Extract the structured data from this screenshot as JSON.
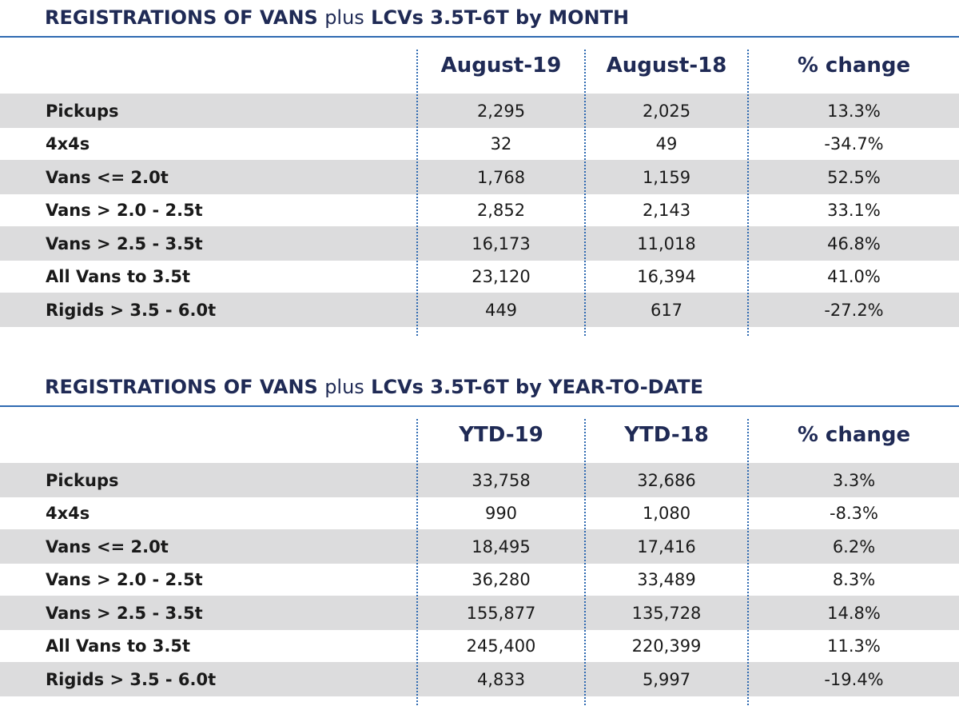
{
  "tables": [
    {
      "title_bold_1": "REGISTRATIONS OF VANS",
      "title_plain": "plus",
      "title_bold_2": "LCVs 3.5T-6T by MONTH",
      "headers": [
        "August-19",
        "August-18",
        "% change"
      ],
      "rows": [
        {
          "label": "Pickups",
          "v1": "2,295",
          "v2": "2,025",
          "pct": "13.3%"
        },
        {
          "label": "4x4s",
          "v1": "32",
          "v2": "49",
          "pct": "-34.7%"
        },
        {
          "label": "Vans <= 2.0t",
          "v1": "1,768",
          "v2": "1,159",
          "pct": "52.5%"
        },
        {
          "label": "Vans > 2.0 - 2.5t",
          "v1": "2,852",
          "v2": "2,143",
          "pct": "33.1%"
        },
        {
          "label": "Vans > 2.5 - 3.5t",
          "v1": "16,173",
          "v2": "11,018",
          "pct": "46.8%"
        },
        {
          "label": "All Vans to 3.5t",
          "v1": "23,120",
          "v2": "16,394",
          "pct": "41.0%"
        },
        {
          "label": "Rigids > 3.5 - 6.0t",
          "v1": "449",
          "v2": "617",
          "pct": "-27.2%"
        }
      ]
    },
    {
      "title_bold_1": "REGISTRATIONS OF VANS",
      "title_plain": "plus",
      "title_bold_2": "LCVs 3.5T-6T by YEAR-TO-DATE",
      "headers": [
        "YTD-19",
        "YTD-18",
        "% change"
      ],
      "rows": [
        {
          "label": "Pickups",
          "v1": "33,758",
          "v2": "32,686",
          "pct": "3.3%"
        },
        {
          "label": "4x4s",
          "v1": "990",
          "v2": "1,080",
          "pct": "-8.3%"
        },
        {
          "label": "Vans <= 2.0t",
          "v1": "18,495",
          "v2": "17,416",
          "pct": "6.2%"
        },
        {
          "label": "Vans > 2.0 - 2.5t",
          "v1": "36,280",
          "v2": "33,489",
          "pct": "8.3%"
        },
        {
          "label": "Vans > 2.5 - 3.5t",
          "v1": "155,877",
          "v2": "135,728",
          "pct": "14.8%"
        },
        {
          "label": "All Vans to 3.5t",
          "v1": "245,400",
          "v2": "220,399",
          "pct": "11.3%"
        },
        {
          "label": "Rigids > 3.5 - 6.0t",
          "v1": "4,833",
          "v2": "5,997",
          "pct": "-19.4%"
        }
      ]
    }
  ]
}
